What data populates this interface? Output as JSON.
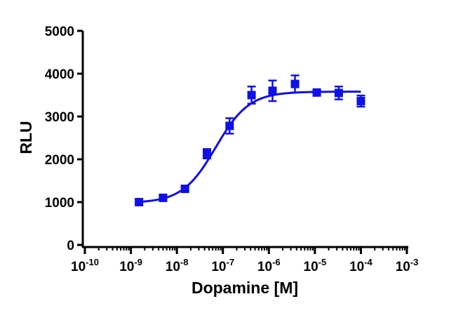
{
  "chart_data": {
    "type": "scatter",
    "title": "",
    "xlabel": "Dopamine [M]",
    "ylabel": "RLU",
    "x_scale": "log",
    "xlim": [
      1e-10,
      0.001
    ],
    "ylim": [
      0,
      5000
    ],
    "x_ticks": [
      {
        "value": 1e-10,
        "base": "10",
        "exp": "-10"
      },
      {
        "value": 1e-09,
        "base": "10",
        "exp": "-9"
      },
      {
        "value": 1e-08,
        "base": "10",
        "exp": "-8"
      },
      {
        "value": 1e-07,
        "base": "10",
        "exp": "-7"
      },
      {
        "value": 1e-06,
        "base": "10",
        "exp": "-6"
      },
      {
        "value": 1e-05,
        "base": "10",
        "exp": "-5"
      },
      {
        "value": 0.0001,
        "base": "10",
        "exp": "-4"
      },
      {
        "value": 0.001,
        "base": "10",
        "exp": "-3"
      }
    ],
    "y_ticks": [
      0,
      1000,
      2000,
      3000,
      4000,
      5000
    ],
    "y_tick_labels": [
      "0",
      "1000",
      "2000",
      "3000",
      "4000",
      "5000"
    ],
    "grid": false,
    "color": "#1010e8",
    "points": [
      {
        "x": 1.5e-09,
        "y": 1000,
        "err": 40
      },
      {
        "x": 5e-09,
        "y": 1100,
        "err": 50
      },
      {
        "x": 1.5e-08,
        "y": 1310,
        "err": 50
      },
      {
        "x": 4.5e-08,
        "y": 2130,
        "err": 110
      },
      {
        "x": 1.4e-07,
        "y": 2780,
        "err": 180
      },
      {
        "x": 4.2e-07,
        "y": 3500,
        "err": 200
      },
      {
        "x": 1.2e-06,
        "y": 3600,
        "err": 240
      },
      {
        "x": 3.7e-06,
        "y": 3760,
        "err": 200
      },
      {
        "x": 1.1e-05,
        "y": 3560,
        "err": 40
      },
      {
        "x": 3.3e-05,
        "y": 3550,
        "err": 150
      },
      {
        "x": 0.0001,
        "y": 3360,
        "err": 130
      }
    ],
    "fit": {
      "model": "four-parameter logistic",
      "bottom": 980,
      "top": 3580,
      "ec50": 7e-08,
      "hill": 1.2,
      "x_range": [
        1.5e-09,
        0.0001
      ]
    }
  }
}
